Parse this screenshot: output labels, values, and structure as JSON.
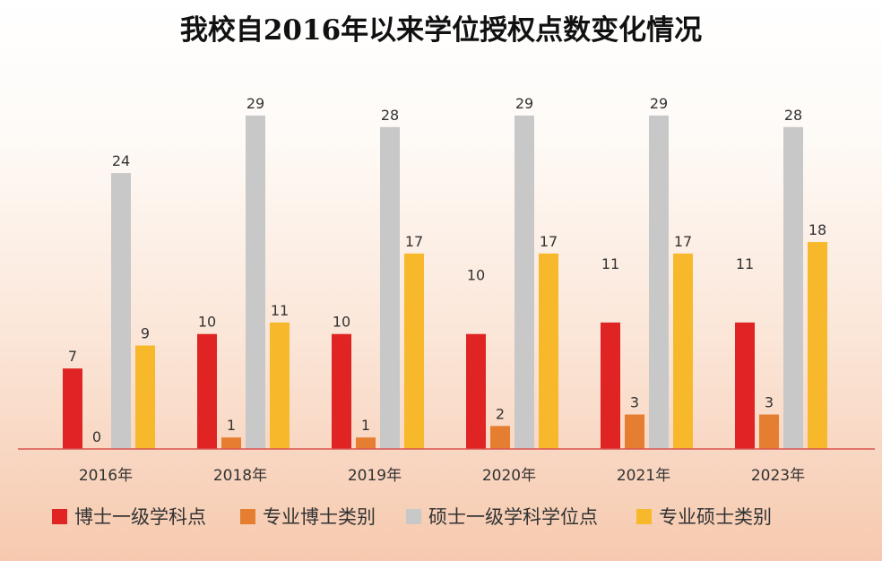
{
  "chart_data": {
    "type": "bar",
    "title": "我校自2016年以来学位授权点数变化情况",
    "categories": [
      "2016年",
      "2018年",
      "2019年",
      "2020年",
      "2021年",
      "2023年"
    ],
    "series": [
      {
        "name": "博士一级学科点",
        "color": "#e02424",
        "values": [
          7,
          10,
          10,
          10,
          11,
          11
        ]
      },
      {
        "name": "专业博士类别",
        "color": "#e57e30",
        "values": [
          0,
          1,
          1,
          2,
          3,
          3
        ]
      },
      {
        "name": "硕士一级学科学位点",
        "color": "#c8c8c8",
        "values": [
          24,
          29,
          28,
          29,
          29,
          28
        ]
      },
      {
        "name": "专业硕士类别",
        "color": "#f7b92b",
        "values": [
          9,
          11,
          17,
          17,
          17,
          18
        ]
      }
    ],
    "ylim": [
      0,
      30
    ],
    "grid": false,
    "legend_position": "bottom"
  }
}
